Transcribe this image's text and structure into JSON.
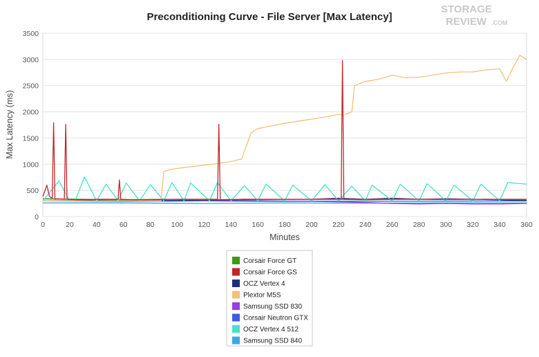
{
  "watermark": {
    "line1": "STORAGE",
    "line2": "REVIEW",
    "suffix": ".COM"
  },
  "chart_data": {
    "type": "line",
    "title": "Preconditioning Curve - File Server [Max Latency]",
    "xlabel": "Minutes",
    "ylabel": "Max Latency (ms)",
    "xlim": [
      0,
      360
    ],
    "ylim": [
      0,
      3500
    ],
    "xticks": [
      0,
      20,
      40,
      60,
      80,
      100,
      120,
      140,
      160,
      180,
      200,
      220,
      240,
      260,
      280,
      300,
      320,
      340,
      360
    ],
    "yticks": [
      0,
      500,
      1000,
      1500,
      2000,
      2500,
      3000,
      3500
    ],
    "grid": "horizontal",
    "legend_position": "bottom",
    "series": [
      {
        "name": "Corsair Force GT",
        "color": "#3c9a12",
        "x": [
          0,
          30,
          60,
          90,
          120,
          150,
          180,
          210,
          240,
          270,
          300,
          330,
          360
        ],
        "y": [
          340,
          330,
          320,
          330,
          320,
          330,
          325,
          330,
          320,
          330,
          325,
          330,
          320
        ]
      },
      {
        "name": "Corsair Force GS",
        "color": "#c0262b",
        "x": [
          0,
          3,
          5,
          7,
          8,
          9,
          11,
          16,
          17,
          18,
          25,
          40,
          50,
          56,
          57,
          58,
          70,
          100,
          130,
          131,
          132,
          133,
          150,
          200,
          222,
          223,
          224,
          240,
          280,
          320,
          360
        ],
        "y": [
          380,
          600,
          380,
          350,
          1790,
          330,
          340,
          330,
          1760,
          330,
          320,
          330,
          330,
          330,
          700,
          330,
          320,
          330,
          330,
          1760,
          330,
          320,
          330,
          330,
          330,
          2980,
          330,
          330,
          330,
          330,
          330
        ]
      },
      {
        "name": "OCZ Vertex 4",
        "color": "#1a2f7d",
        "x": [
          0,
          40,
          80,
          120,
          160,
          200,
          220,
          240,
          260,
          280,
          300,
          320,
          340,
          360
        ],
        "y": [
          300,
          310,
          300,
          310,
          320,
          330,
          350,
          330,
          350,
          330,
          340,
          330,
          320,
          300
        ]
      },
      {
        "name": "Plextor M5S",
        "color": "#f0c27a",
        "x": [
          0,
          60,
          88,
          90,
          95,
          100,
          110,
          120,
          130,
          140,
          148,
          150,
          155,
          160,
          170,
          180,
          190,
          200,
          210,
          220,
          224,
          230,
          232,
          240,
          250,
          260,
          270,
          280,
          290,
          300,
          310,
          320,
          330,
          340,
          345,
          350,
          355,
          360
        ],
        "y": [
          300,
          300,
          300,
          860,
          900,
          920,
          950,
          980,
          1010,
          1050,
          1100,
          1250,
          1600,
          1680,
          1730,
          1780,
          1820,
          1860,
          1900,
          1950,
          1940,
          2000,
          2500,
          2580,
          2620,
          2700,
          2650,
          2660,
          2700,
          2740,
          2760,
          2760,
          2800,
          2820,
          2580,
          2850,
          3080,
          3000
        ]
      },
      {
        "name": "Samsung SSD 830",
        "color": "#9b3de8",
        "x": [
          0,
          40,
          80,
          120,
          160,
          200,
          240,
          260,
          280,
          300,
          320,
          340,
          360
        ],
        "y": [
          340,
          320,
          310,
          300,
          290,
          290,
          270,
          250,
          240,
          250,
          240,
          240,
          250
        ]
      },
      {
        "name": "Corsair Neutron GTX",
        "color": "#3b5fe0",
        "x": [
          0,
          60,
          120,
          180,
          240,
          300,
          360
        ],
        "y": [
          300,
          290,
          300,
          295,
          290,
          295,
          300
        ]
      },
      {
        "name": "OCZ Vertex 4 512",
        "color": "#46e1d0",
        "x": [
          0,
          12,
          20,
          24,
          31,
          40,
          47,
          56,
          62,
          72,
          80,
          90,
          96,
          105,
          110,
          124,
          130,
          140,
          150,
          160,
          166,
          180,
          186,
          200,
          210,
          220,
          230,
          240,
          245,
          260,
          266,
          280,
          286,
          300,
          306,
          320,
          326,
          340,
          346,
          360
        ],
        "y": [
          300,
          680,
          300,
          300,
          760,
          300,
          620,
          300,
          640,
          300,
          610,
          300,
          650,
          300,
          640,
          300,
          650,
          300,
          590,
          300,
          620,
          300,
          600,
          300,
          610,
          300,
          580,
          300,
          600,
          300,
          620,
          300,
          630,
          300,
          600,
          300,
          620,
          300,
          650,
          620
        ]
      },
      {
        "name": "Samsung SSD 840",
        "color": "#3aa8e4",
        "x": [
          0,
          60,
          120,
          180,
          240,
          300,
          360
        ],
        "y": [
          260,
          260,
          250,
          260,
          255,
          260,
          260
        ]
      }
    ]
  }
}
